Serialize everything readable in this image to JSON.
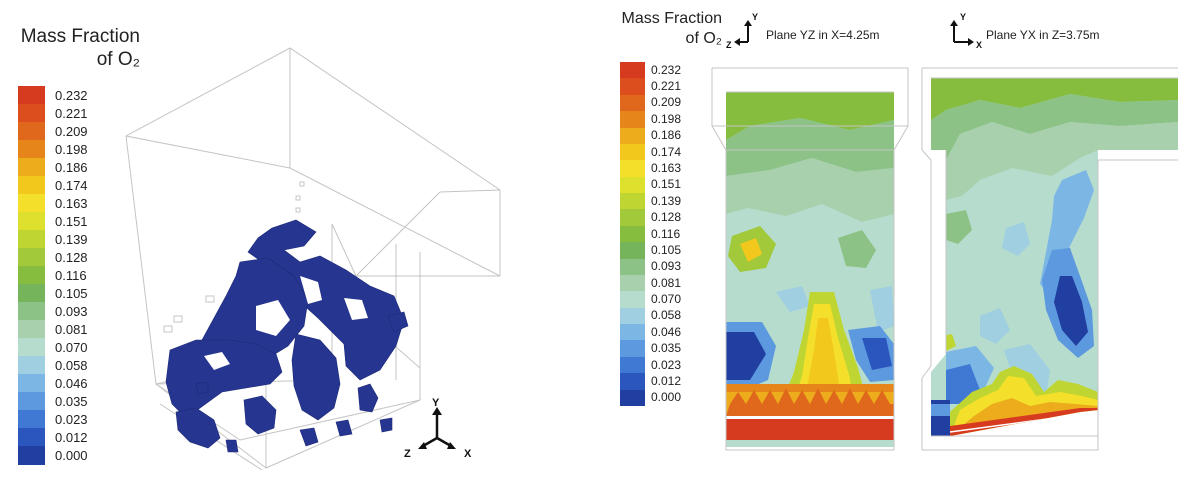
{
  "legend_title": {
    "line1": "Mass Fraction",
    "line2": "of O₂"
  },
  "colorbar": {
    "ticks": [
      "0.232",
      "0.221",
      "0.209",
      "0.198",
      "0.186",
      "0.174",
      "0.163",
      "0.151",
      "0.139",
      "0.128",
      "0.116",
      "0.105",
      "0.093",
      "0.081",
      "0.070",
      "0.058",
      "0.046",
      "0.035",
      "0.023",
      "0.012",
      "0.000"
    ],
    "colors": [
      "#d63a1f",
      "#dc4e1e",
      "#e0681c",
      "#e6861a",
      "#ecac1c",
      "#f2c81c",
      "#f4e02a",
      "#dde12e",
      "#bfd532",
      "#a2c93a",
      "#86bd3e",
      "#75b45a",
      "#8cc286",
      "#a8d0ad",
      "#b6dccd",
      "#9fcfe1",
      "#7cb6e4",
      "#5c99de",
      "#3f79d3",
      "#2a56bd",
      "#213ea1"
    ]
  },
  "axes_3d": {
    "y": "Y",
    "z": "Z",
    "x": "X"
  },
  "plane_labels": {
    "yz": "Plane YZ in X=4.25m",
    "yx": "Plane YX in Z=3.75m"
  },
  "plane_axes": {
    "yz": {
      "y": "Y",
      "z": "Z"
    },
    "yx": {
      "y": "Y",
      "x": "X"
    }
  }
}
